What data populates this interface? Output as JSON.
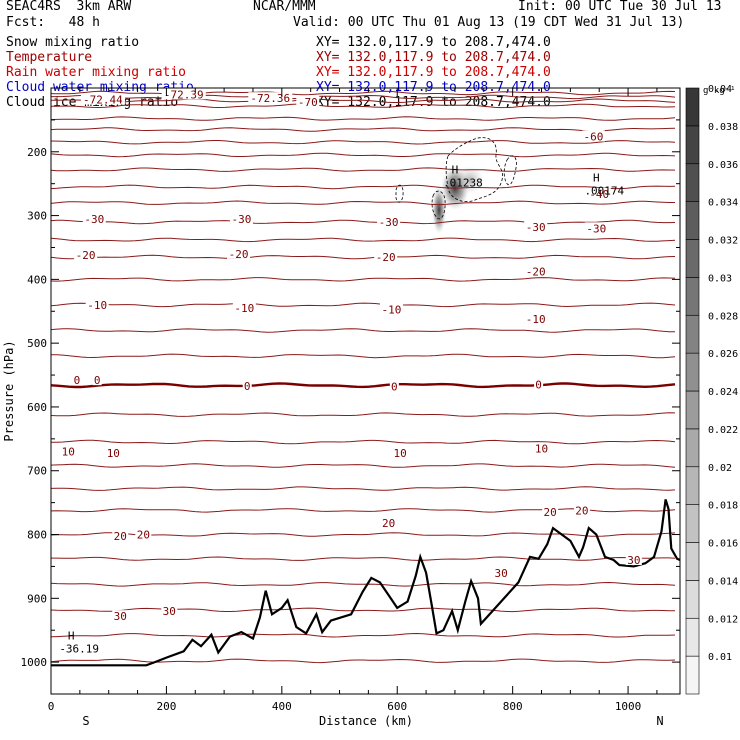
{
  "header": {
    "model": "SEAC4RS  3km ARW",
    "forecast": "Fcst:   48 h",
    "center": "NCAR/MMM",
    "init": "Init: 00 UTC Tue 30 Jul 13",
    "valid": "Valid: 00 UTC Thu 01 Aug 13 (19 CDT Wed 31 Jul 13)"
  },
  "fields": [
    {
      "name": "Snow mixing ratio",
      "xy": "XY= 132.0,117.9 to 208.7,474.0",
      "color": "#000000"
    },
    {
      "name": "Temperature",
      "xy": "XY= 132.0,117.9 to 208.7,474.0",
      "color": "#990000"
    },
    {
      "name": "Rain water mixing ratio",
      "xy": "XY= 132.0,117.9 to 208.7,474.0",
      "color": "#cc0000"
    },
    {
      "name": "Cloud water mixing ratio",
      "xy": "XY= 132.0,117.9 to 208.7,474.0",
      "color": "#0000cc"
    },
    {
      "name": "Cloud ice mixing ratio",
      "xy": "XY= 132.0,117.9 to 208.7,474.0",
      "color": "#000000"
    }
  ],
  "chart_data": {
    "type": "contour",
    "xlabel": "Distance (km)",
    "ylabel": "Pressure (hPa)",
    "xlim": [
      0,
      1090
    ],
    "ylim": [
      1050,
      100
    ],
    "xticks": [
      0,
      200,
      400,
      600,
      800,
      1000
    ],
    "yticks": [
      200,
      300,
      400,
      500,
      600,
      700,
      800,
      900,
      1000
    ],
    "x_end_labels": {
      "left": "S",
      "right": "N"
    },
    "colorbar": {
      "unit": "g kg⁻¹",
      "levels": [
        0.01,
        0.012,
        0.014,
        0.016,
        0.018,
        0.02,
        0.022,
        0.024,
        0.026,
        0.028,
        0.03,
        0.032,
        0.034,
        0.036,
        0.038,
        0.04
      ]
    },
    "temperature_labels": [
      {
        "text": "-72.39",
        "x": 230,
        "p": 110
      },
      {
        "text": "-72.36",
        "x": 380,
        "p": 116
      },
      {
        "text": "-72.44",
        "x": 90,
        "p": 118
      },
      {
        "text": "-70",
        "x": 445,
        "p": 122
      },
      {
        "text": "-60",
        "x": 940,
        "p": 176
      },
      {
        "text": "-40",
        "x": 950,
        "p": 266
      },
      {
        "text": "-30",
        "x": 75,
        "p": 305
      },
      {
        "text": "-30",
        "x": 330,
        "p": 305
      },
      {
        "text": "-30",
        "x": 585,
        "p": 310
      },
      {
        "text": "-30",
        "x": 840,
        "p": 318
      },
      {
        "text": "-30",
        "x": 945,
        "p": 320
      },
      {
        "text": "-20",
        "x": 60,
        "p": 362
      },
      {
        "text": "-20",
        "x": 325,
        "p": 360
      },
      {
        "text": "-20",
        "x": 580,
        "p": 365
      },
      {
        "text": "-20",
        "x": 840,
        "p": 388
      },
      {
        "text": "-10",
        "x": 80,
        "p": 440
      },
      {
        "text": "-10",
        "x": 335,
        "p": 445
      },
      {
        "text": "-10",
        "x": 590,
        "p": 447
      },
      {
        "text": "-10",
        "x": 840,
        "p": 462
      },
      {
        "text": "0",
        "x": 45,
        "p": 558
      },
      {
        "text": "0",
        "x": 80,
        "p": 558
      },
      {
        "text": "0",
        "x": 340,
        "p": 567
      },
      {
        "text": "0",
        "x": 595,
        "p": 568
      },
      {
        "text": "0",
        "x": 845,
        "p": 565
      },
      {
        "text": "10",
        "x": 30,
        "p": 670
      },
      {
        "text": "10",
        "x": 108,
        "p": 672
      },
      {
        "text": "10",
        "x": 605,
        "p": 672
      },
      {
        "text": "10",
        "x": 850,
        "p": 665
      },
      {
        "text": "20",
        "x": 120,
        "p": 802
      },
      {
        "text": "20",
        "x": 160,
        "p": 800
      },
      {
        "text": "20",
        "x": 585,
        "p": 782
      },
      {
        "text": "20",
        "x": 865,
        "p": 765
      },
      {
        "text": "20",
        "x": 920,
        "p": 762
      },
      {
        "text": "30",
        "x": 120,
        "p": 928
      },
      {
        "text": "30",
        "x": 205,
        "p": 920
      },
      {
        "text": "30",
        "x": 780,
        "p": 860
      },
      {
        "text": "30",
        "x": 1010,
        "p": 840
      }
    ],
    "extrema_labels": [
      {
        "marker": "H",
        "value": "-36.19",
        "x": 35,
        "p": 980
      },
      {
        "marker": "H",
        "value": ".01238",
        "x": 700,
        "p": 250
      },
      {
        "marker": "H",
        "value": ".00174",
        "x": 945,
        "p": 262
      }
    ],
    "temperature_levels_p": [
      108,
      114,
      120,
      128,
      148,
      165,
      185,
      205,
      228,
      255,
      280,
      310,
      338,
      365,
      400,
      440,
      480,
      520,
      566,
      612,
      655,
      692,
      728,
      762,
      800,
      838,
      878,
      918,
      958,
      998
    ],
    "freezing_level_index": 18,
    "terrain": [
      [
        0,
        1005
      ],
      [
        165,
        1005
      ],
      [
        180,
        1000
      ],
      [
        200,
        993
      ],
      [
        230,
        983
      ],
      [
        245,
        965
      ],
      [
        260,
        975
      ],
      [
        278,
        957
      ],
      [
        290,
        985
      ],
      [
        310,
        960
      ],
      [
        330,
        953
      ],
      [
        350,
        963
      ],
      [
        362,
        930
      ],
      [
        372,
        888
      ],
      [
        383,
        925
      ],
      [
        400,
        915
      ],
      [
        410,
        903
      ],
      [
        425,
        945
      ],
      [
        442,
        955
      ],
      [
        460,
        925
      ],
      [
        470,
        953
      ],
      [
        485,
        935
      ],
      [
        520,
        925
      ],
      [
        540,
        890
      ],
      [
        555,
        868
      ],
      [
        570,
        875
      ],
      [
        585,
        895
      ],
      [
        600,
        915
      ],
      [
        618,
        905
      ],
      [
        632,
        865
      ],
      [
        640,
        835
      ],
      [
        650,
        860
      ],
      [
        660,
        912
      ],
      [
        668,
        955
      ],
      [
        680,
        950
      ],
      [
        695,
        920
      ],
      [
        705,
        950
      ],
      [
        718,
        905
      ],
      [
        728,
        873
      ],
      [
        740,
        900
      ],
      [
        745,
        940
      ],
      [
        760,
        925
      ],
      [
        790,
        895
      ],
      [
        810,
        875
      ],
      [
        830,
        835
      ],
      [
        845,
        838
      ],
      [
        860,
        815
      ],
      [
        870,
        790
      ],
      [
        885,
        800
      ],
      [
        900,
        810
      ],
      [
        915,
        835
      ],
      [
        922,
        820
      ],
      [
        932,
        790
      ],
      [
        945,
        800
      ],
      [
        960,
        835
      ],
      [
        975,
        840
      ],
      [
        985,
        848
      ],
      [
        1010,
        850
      ],
      [
        1030,
        845
      ],
      [
        1045,
        835
      ],
      [
        1058,
        795
      ],
      [
        1065,
        745
      ],
      [
        1070,
        760
      ],
      [
        1075,
        822
      ],
      [
        1085,
        838
      ],
      [
        1090,
        840
      ]
    ]
  }
}
